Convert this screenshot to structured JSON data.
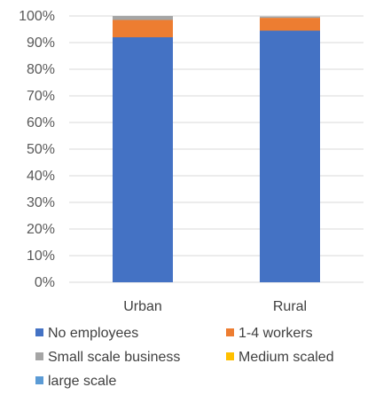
{
  "chart_data": {
    "type": "bar",
    "stacked": true,
    "categories": [
      "Urban",
      "Rural"
    ],
    "series": [
      {
        "name": "No employees",
        "color": "#4472C4",
        "values": [
          92,
          94.5
        ]
      },
      {
        "name": "1-4 workers",
        "color": "#ED7D31",
        "values": [
          6.5,
          4.8
        ]
      },
      {
        "name": "Small scale business",
        "color": "#A5A5A5",
        "values": [
          1.5,
          0.5
        ]
      },
      {
        "name": "Medium scaled",
        "color": "#FFC000",
        "values": [
          0,
          0
        ]
      },
      {
        "name": "large scale",
        "color": "#5B9BD5",
        "values": [
          0,
          0
        ]
      }
    ],
    "y_ticks": [
      "0%",
      "10%",
      "20%",
      "30%",
      "40%",
      "50%",
      "60%",
      "70%",
      "80%",
      "90%",
      "100%"
    ],
    "ylim": [
      0,
      100
    ],
    "grid": true,
    "legend_position": "bottom"
  }
}
